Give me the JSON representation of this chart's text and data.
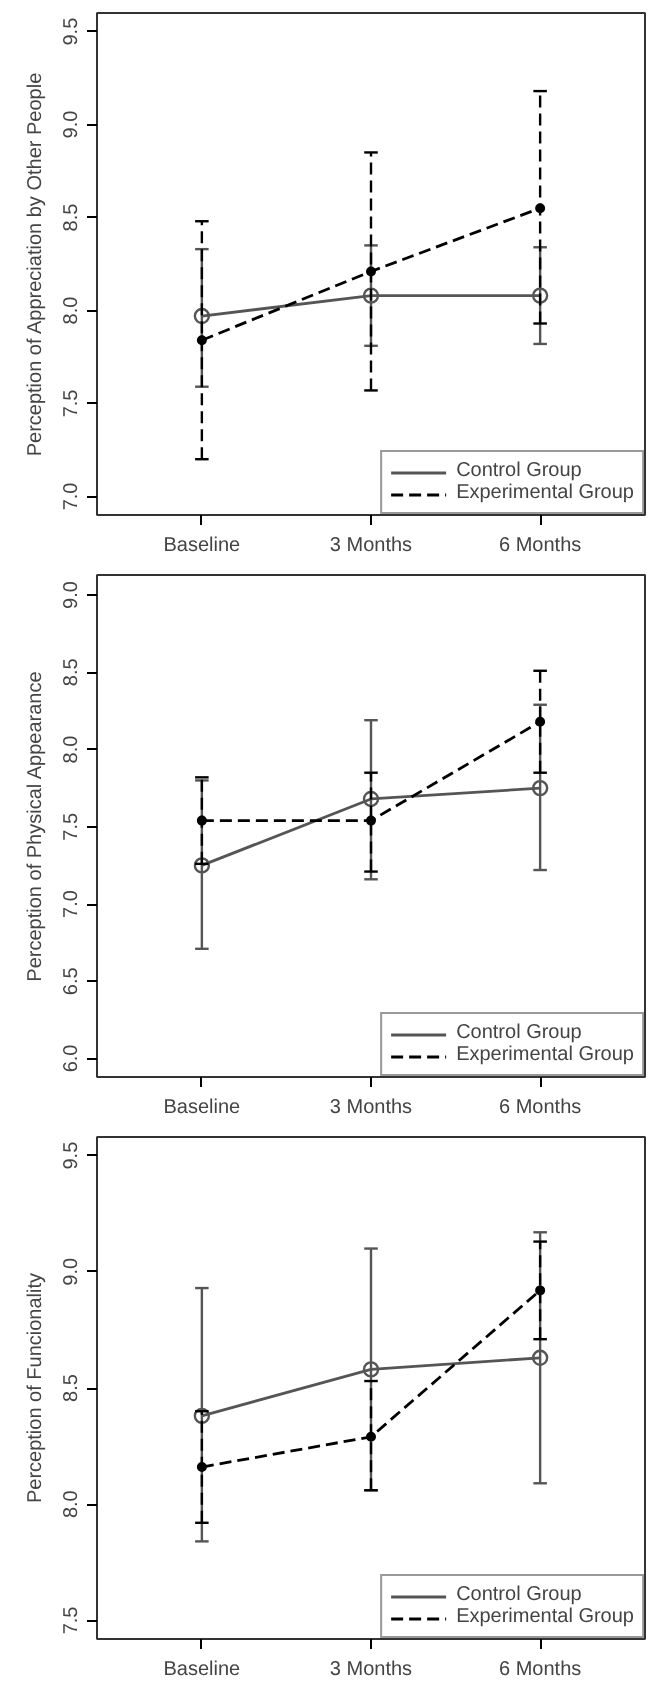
{
  "chart_data": [
    {
      "type": "line",
      "ylabel": "Perception of Appreciation by Other People",
      "categories": [
        "Baseline",
        "3 Months",
        "6 Months"
      ],
      "ylim": [
        6.9,
        9.6
      ],
      "yticks": [
        {
          "value": 7.0,
          "label": "7.0"
        },
        {
          "value": 7.5,
          "label": "7.5"
        },
        {
          "value": 8.0,
          "label": "8.0"
        },
        {
          "value": 8.5,
          "label": "8.5"
        },
        {
          "value": 9.0,
          "label": "9.0"
        },
        {
          "value": 9.5,
          "label": "9.5"
        }
      ],
      "grid": false,
      "legend": "bottom right",
      "series": [
        {
          "name": "Control Group",
          "color": "#555555",
          "values": [
            7.97,
            8.08,
            8.08
          ],
          "errors": [
            [
              7.59,
              8.33
            ],
            [
              7.81,
              8.35
            ],
            [
              7.82,
              8.34
            ]
          ],
          "marker": "circle",
          "line_style": "solid"
        },
        {
          "name": "Experimental Group",
          "color": "#000000",
          "values": [
            7.84,
            8.21,
            8.55
          ],
          "errors": [
            [
              7.2,
              8.48
            ],
            [
              7.57,
              8.85
            ],
            [
              7.93,
              9.18
            ]
          ],
          "marker": "dot",
          "line_style": "dashed"
        }
      ]
    },
    {
      "type": "line",
      "ylabel": "Perception of Physical Appearance",
      "categories": [
        "Baseline",
        "3 Months",
        "6 Months"
      ],
      "ylim": [
        5.88,
        9.13
      ],
      "yticks": [
        {
          "value": 6.0,
          "label": "6.0"
        },
        {
          "value": 6.5,
          "label": "6.5"
        },
        {
          "value": 7.0,
          "label": "7.0"
        },
        {
          "value": 7.5,
          "label": "7.5"
        },
        {
          "value": 8.0,
          "label": "8.0"
        },
        {
          "value": 8.5,
          "label": "8.5"
        },
        {
          "value": 9.0,
          "label": "9.0"
        }
      ],
      "grid": false,
      "legend": "bottom right",
      "series": [
        {
          "name": "Control Group",
          "color": "#555555",
          "values": [
            7.25,
            7.68,
            7.75
          ],
          "errors": [
            [
              6.71,
              7.8
            ],
            [
              7.16,
              8.19
            ],
            [
              7.22,
              8.29
            ]
          ],
          "marker": "circle",
          "line_style": "solid"
        },
        {
          "name": "Experimental Group",
          "color": "#000000",
          "values": [
            7.54,
            7.54,
            8.18
          ],
          "errors": [
            [
              7.26,
              7.82
            ],
            [
              7.21,
              7.85
            ],
            [
              7.85,
              8.51
            ]
          ],
          "marker": "dot",
          "line_style": "dashed"
        }
      ]
    },
    {
      "type": "line",
      "ylabel": "Perception of Funcionality",
      "categories": [
        "Baseline",
        "3 Months",
        "6 Months"
      ],
      "ylim": [
        7.42,
        9.58
      ],
      "yticks": [
        {
          "value": 7.5,
          "label": "7.5"
        },
        {
          "value": 8.0,
          "label": "8.0"
        },
        {
          "value": 8.5,
          "label": "8.5"
        },
        {
          "value": 9.0,
          "label": "9.0"
        },
        {
          "value": 9.5,
          "label": "9.5"
        }
      ],
      "grid": false,
      "legend": "bottom right",
      "series": [
        {
          "name": "Control Group",
          "color": "#555555",
          "values": [
            8.38,
            8.58,
            8.63
          ],
          "errors": [
            [
              7.84,
              8.93
            ],
            [
              8.06,
              9.1
            ],
            [
              8.09,
              9.17
            ]
          ],
          "marker": "circle",
          "line_style": "solid"
        },
        {
          "name": "Experimental Group",
          "color": "#000000",
          "values": [
            8.16,
            8.29,
            8.92
          ],
          "errors": [
            [
              7.92,
              8.4
            ],
            [
              8.06,
              8.53
            ],
            [
              8.71,
              9.13
            ]
          ],
          "marker": "dot",
          "line_style": "dashed"
        }
      ]
    }
  ]
}
